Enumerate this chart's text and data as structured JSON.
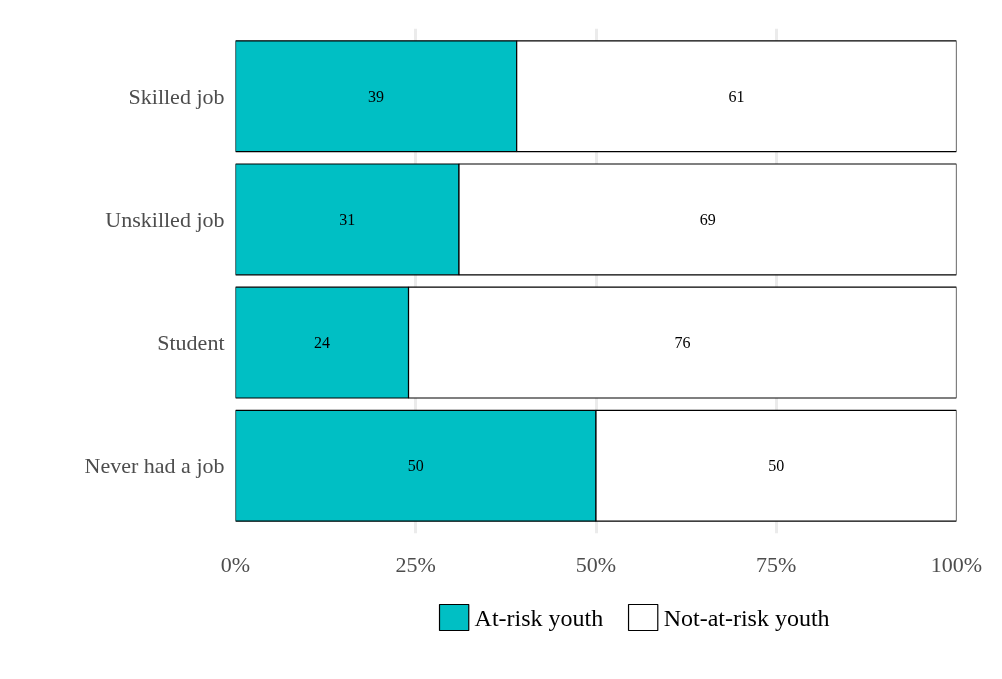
{
  "chart_data": {
    "type": "bar",
    "orientation": "horizontal",
    "stacked": true,
    "categories": [
      "Skilled job",
      "Unskilled job",
      "Student",
      "Never had a job"
    ],
    "series": [
      {
        "name": "At-risk youth",
        "color": "#00bfc4",
        "values": [
          39,
          31,
          24,
          50
        ]
      },
      {
        "name": "Not-at-risk youth",
        "color": "#ffffff",
        "values": [
          61,
          69,
          76,
          50
        ]
      }
    ],
    "xlim": [
      0,
      100
    ],
    "xticks": [
      {
        "value": 0,
        "label": "0%"
      },
      {
        "value": 25,
        "label": "25%"
      },
      {
        "value": 50,
        "label": "50%"
      },
      {
        "value": 75,
        "label": "75%"
      },
      {
        "value": 100,
        "label": "100%"
      }
    ],
    "grid": "x",
    "legend": "bottom",
    "data_labels": true
  }
}
